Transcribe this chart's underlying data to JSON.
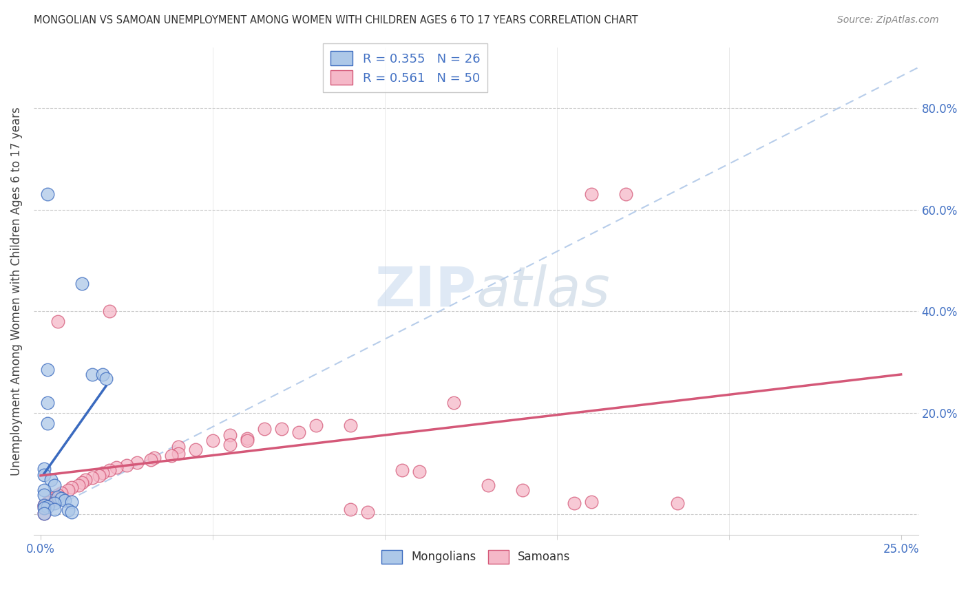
{
  "title": "MONGOLIAN VS SAMOAN UNEMPLOYMENT AMONG WOMEN WITH CHILDREN AGES 6 TO 17 YEARS CORRELATION CHART",
  "source": "Source: ZipAtlas.com",
  "ylabel_label": "Unemployment Among Women with Children Ages 6 to 17 years",
  "legend_mongolian": "R = 0.355   N = 26",
  "legend_samoan": "R = 0.561   N = 50",
  "xlim": [
    -0.002,
    0.255
  ],
  "ylim": [
    -0.04,
    0.92
  ],
  "ytick_positions": [
    0.0,
    0.2,
    0.4,
    0.6,
    0.8
  ],
  "ytick_labels_right": [
    "",
    "20.0%",
    "40.0%",
    "60.0%",
    "80.0%"
  ],
  "mongolian_color": "#adc8e8",
  "samoan_color": "#f5b8c8",
  "mongolian_line_color": "#3a6abf",
  "samoan_line_color": "#d45878",
  "mongolian_scatter": [
    [
      0.002,
      0.63
    ],
    [
      0.012,
      0.455
    ],
    [
      0.002,
      0.285
    ],
    [
      0.015,
      0.275
    ],
    [
      0.002,
      0.22
    ],
    [
      0.002,
      0.18
    ],
    [
      0.018,
      0.275
    ],
    [
      0.019,
      0.267
    ],
    [
      0.001,
      0.09
    ],
    [
      0.001,
      0.078
    ],
    [
      0.003,
      0.068
    ],
    [
      0.004,
      0.058
    ],
    [
      0.001,
      0.048
    ],
    [
      0.001,
      0.038
    ],
    [
      0.005,
      0.035
    ],
    [
      0.006,
      0.032
    ],
    [
      0.007,
      0.028
    ],
    [
      0.009,
      0.025
    ],
    [
      0.004,
      0.022
    ],
    [
      0.001,
      0.018
    ],
    [
      0.002,
      0.015
    ],
    [
      0.001,
      0.012
    ],
    [
      0.004,
      0.01
    ],
    [
      0.008,
      0.008
    ],
    [
      0.009,
      0.005
    ],
    [
      0.001,
      0.002
    ]
  ],
  "samoan_scatter": [
    [
      0.16,
      0.63
    ],
    [
      0.17,
      0.63
    ],
    [
      0.02,
      0.4
    ],
    [
      0.005,
      0.38
    ],
    [
      0.12,
      0.22
    ],
    [
      0.08,
      0.175
    ],
    [
      0.09,
      0.175
    ],
    [
      0.065,
      0.168
    ],
    [
      0.075,
      0.162
    ],
    [
      0.055,
      0.157
    ],
    [
      0.06,
      0.15
    ],
    [
      0.05,
      0.145
    ],
    [
      0.055,
      0.138
    ],
    [
      0.04,
      0.133
    ],
    [
      0.045,
      0.128
    ],
    [
      0.04,
      0.12
    ],
    [
      0.038,
      0.115
    ],
    [
      0.033,
      0.112
    ],
    [
      0.032,
      0.107
    ],
    [
      0.028,
      0.102
    ],
    [
      0.025,
      0.097
    ],
    [
      0.022,
      0.092
    ],
    [
      0.02,
      0.087
    ],
    [
      0.018,
      0.082
    ],
    [
      0.017,
      0.077
    ],
    [
      0.015,
      0.072
    ],
    [
      0.013,
      0.068
    ],
    [
      0.012,
      0.063
    ],
    [
      0.011,
      0.058
    ],
    [
      0.009,
      0.053
    ],
    [
      0.008,
      0.048
    ],
    [
      0.006,
      0.043
    ],
    [
      0.005,
      0.038
    ],
    [
      0.004,
      0.033
    ],
    [
      0.003,
      0.028
    ],
    [
      0.002,
      0.023
    ],
    [
      0.001,
      0.018
    ],
    [
      0.001,
      0.015
    ],
    [
      0.06,
      0.145
    ],
    [
      0.07,
      0.168
    ],
    [
      0.105,
      0.087
    ],
    [
      0.13,
      0.058
    ],
    [
      0.14,
      0.048
    ],
    [
      0.185,
      0.022
    ],
    [
      0.16,
      0.025
    ],
    [
      0.155,
      0.022
    ],
    [
      0.09,
      0.01
    ],
    [
      0.095,
      0.005
    ],
    [
      0.11,
      0.085
    ],
    [
      0.001,
      0.002
    ]
  ],
  "background_color": "#ffffff",
  "grid_color": "#cccccc",
  "ref_line_color": "#b0c8e8",
  "watermark_zip_color": "#c0d0e8",
  "watermark_atlas_color": "#b8c8d8"
}
